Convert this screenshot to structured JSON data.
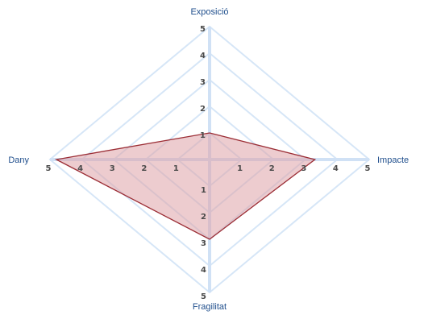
{
  "chart_data": {
    "type": "radar",
    "axes": [
      {
        "label": "Exposició",
        "direction": "top"
      },
      {
        "label": "Impacte",
        "direction": "right"
      },
      {
        "label": "Fragilitat",
        "direction": "bottom"
      },
      {
        "label": "Dany",
        "direction": "left"
      }
    ],
    "scale": {
      "min": 0,
      "max": 5,
      "ticks": [
        "1",
        "2",
        "3",
        "4",
        "5"
      ]
    },
    "series": [
      {
        "values": [
          1,
          3.3,
          3,
          4.8
        ],
        "fill": "#dfa3a8",
        "stroke": "#9b2d35"
      }
    ],
    "grid_color": "#d6e6f7",
    "axis_color": "#d0e1f5",
    "grid": true,
    "legend": "none"
  }
}
